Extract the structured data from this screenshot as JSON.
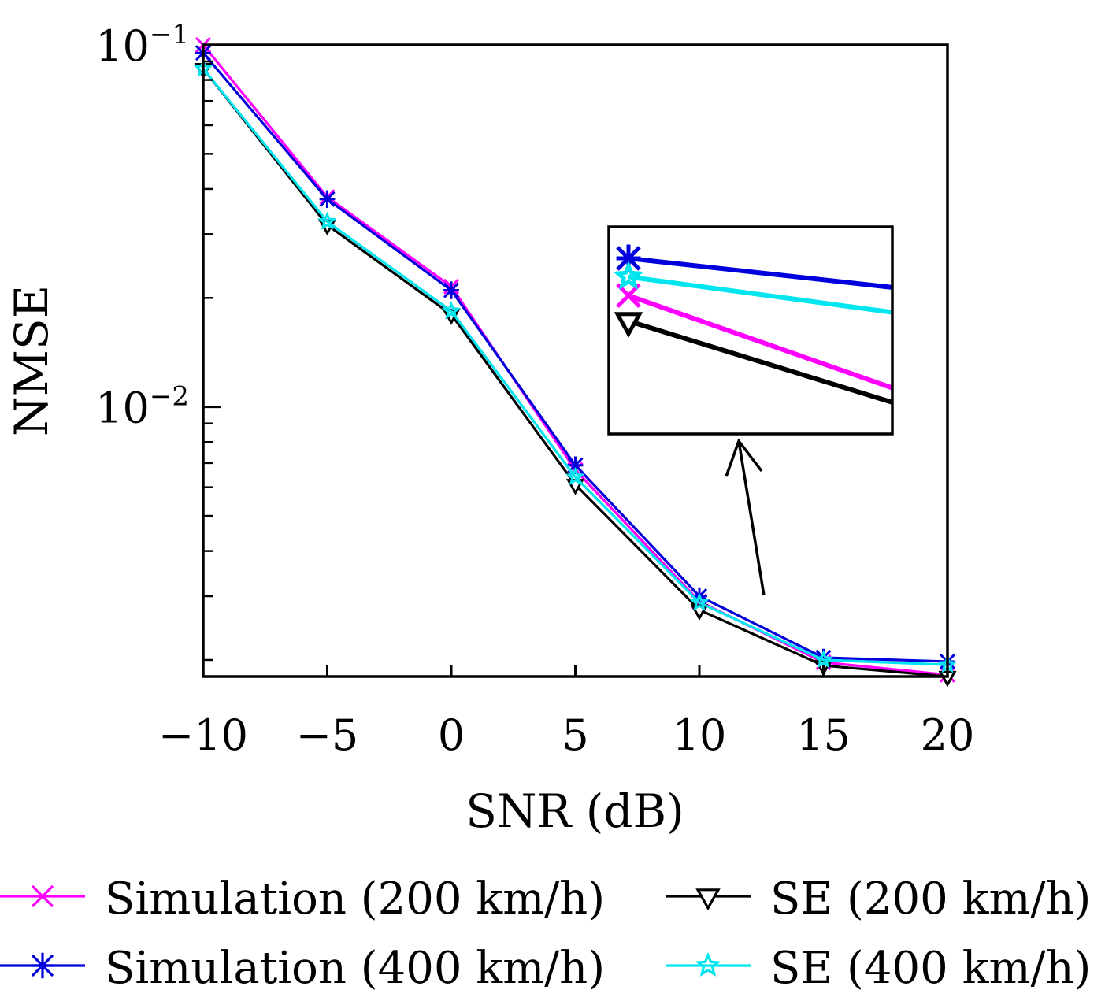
{
  "chart_data": {
    "type": "line",
    "xlabel": "SNR (dB)",
    "ylabel": "NMSE",
    "x": [
      -10,
      -5,
      0,
      5,
      10,
      15,
      20
    ],
    "x_tick_labels": [
      "−10",
      "−5",
      "0",
      "5",
      "10",
      "15",
      "20"
    ],
    "xlim": [
      -10,
      20
    ],
    "y_scale": "log",
    "ylim": [
      0.0018,
      0.1
    ],
    "y_tick_labels": [
      {
        "base": "10",
        "exp": "−1",
        "value": 0.1
      },
      {
        "base": "10",
        "exp": "−2",
        "value": 0.01
      }
    ],
    "grid": false,
    "legend_position": "bottom",
    "series": [
      {
        "name": "Simulation (200 km/h)",
        "color": "#ff00ff",
        "marker": "x",
        "values": [
          0.1,
          0.038,
          0.0215,
          0.0067,
          0.0029,
          0.00197,
          0.00182
        ]
      },
      {
        "name": "Simulation (400 km/h)",
        "color": "#0000dd",
        "marker": "asterisk",
        "values": [
          0.095,
          0.0375,
          0.021,
          0.0069,
          0.003,
          0.00203,
          0.00198
        ]
      },
      {
        "name": "SE (200 km/h)",
        "color": "#000000",
        "marker": "triangle-down",
        "values": [
          0.086,
          0.0318,
          0.018,
          0.0061,
          0.00275,
          0.00193,
          0.0018
        ]
      },
      {
        "name": "SE (400 km/h)",
        "color": "#00e5ee",
        "marker": "star",
        "values": [
          0.086,
          0.0325,
          0.0184,
          0.0064,
          0.00288,
          0.002,
          0.00194
        ]
      }
    ],
    "inset": {
      "type": "zoom",
      "x_range": [
        15,
        20
      ]
    }
  }
}
